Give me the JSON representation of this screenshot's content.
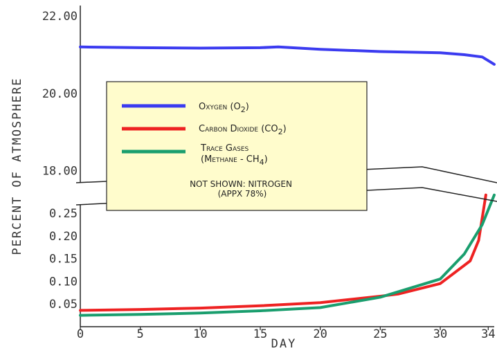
{
  "chart_data": {
    "type": "line",
    "xlabel": "DAY",
    "ylabel": "PERCENT OF ATMOSPHERE",
    "x_ticks": [
      "0",
      "5",
      "10",
      "15",
      "20",
      "25",
      "30",
      "34"
    ],
    "xlim": [
      0,
      34.5
    ],
    "y_upper": {
      "ylim": [
        17.9,
        22.2
      ],
      "ticks": [
        "18.00",
        "20.00",
        "22.00"
      ]
    },
    "y_lower": {
      "ylim": [
        0.0,
        0.285
      ],
      "ticks": [
        "0.05",
        "0.10",
        "0.15",
        "0.20",
        "0.25"
      ]
    },
    "axis_break": true,
    "series": [
      {
        "name": "Oxygen",
        "color": "#3b3bf0",
        "panel": "upper",
        "x": [
          0,
          5,
          10,
          15,
          16.5,
          20,
          25,
          30,
          32,
          33.5,
          34.5
        ],
        "y": [
          21.2,
          21.18,
          21.17,
          21.18,
          21.2,
          21.14,
          21.08,
          21.05,
          21.0,
          20.94,
          20.75
        ]
      },
      {
        "name": "Carbon Dioxide",
        "color": "#ee2222",
        "panel": "lower",
        "x": [
          0,
          5,
          10,
          15,
          20,
          25,
          26.5,
          30,
          32.5,
          33.2,
          33.8
        ],
        "y": [
          0.036,
          0.038,
          0.041,
          0.046,
          0.053,
          0.067,
          0.072,
          0.095,
          0.145,
          0.19,
          0.29
        ]
      },
      {
        "name": "Trace Gases",
        "color": "#1a9e6e",
        "panel": "lower",
        "x": [
          0,
          5,
          10,
          15,
          20,
          25,
          30,
          32,
          33.5,
          34.5
        ],
        "y": [
          0.025,
          0.027,
          0.03,
          0.035,
          0.042,
          0.065,
          0.105,
          0.16,
          0.225,
          0.29
        ]
      }
    ],
    "legend": {
      "placement": "center",
      "entries": [
        {
          "label": "Oxygen (O",
          "sub": "2",
          "tail": ")",
          "color": "#3b3bf0"
        },
        {
          "label": "Carbon Dioxide (CO",
          "sub": "2",
          "tail": ")",
          "color": "#ee2222"
        },
        {
          "label": "Trace Gases",
          "line2": "(Methane - CH",
          "sub": "4",
          "tail": ")",
          "color": "#1a9e6e"
        }
      ],
      "note_line1": "NOT SHOWN: NITROGEN",
      "note_line2": "(APPX 78%)",
      "background": "#fffccc"
    }
  }
}
